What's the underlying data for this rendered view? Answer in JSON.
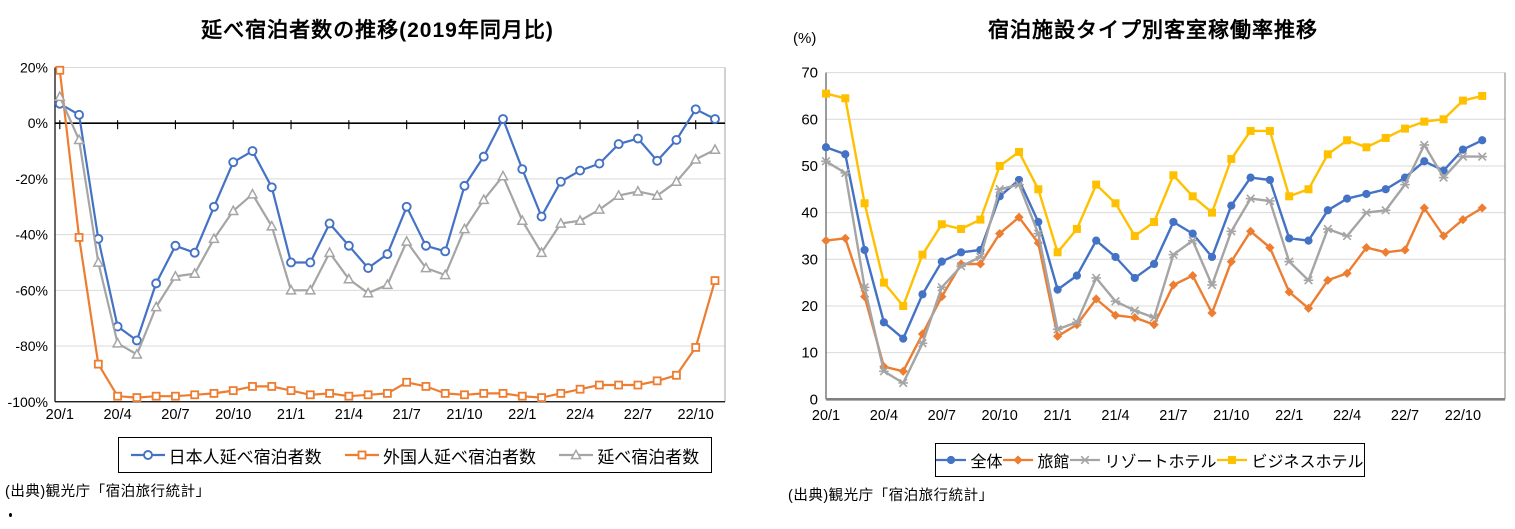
{
  "chart_data": [
    {
      "type": "line",
      "title": "延べ宿泊者数の推移(2019年同月比)",
      "source": "(出典)観光庁「宿泊旅行統計」",
      "grid": true,
      "legend_position": "bottom",
      "ylim": [
        -100,
        20
      ],
      "y_tick_values": [
        20,
        0,
        -20,
        -40,
        -60,
        -80,
        -100
      ],
      "y_tick_labels": [
        "20%",
        "0%",
        "-20%",
        "-40%",
        "-60%",
        "-80%",
        "-100%"
      ],
      "x_tick_labels": [
        "20/1",
        "20/4",
        "20/7",
        "20/10",
        "21/1",
        "21/4",
        "21/7",
        "21/10",
        "22/1",
        "22/4",
        "22/7",
        "22/10"
      ],
      "months": [
        "20/1",
        "20/2",
        "20/3",
        "20/4",
        "20/5",
        "20/6",
        "20/7",
        "20/8",
        "20/9",
        "20/10",
        "20/11",
        "20/12",
        "21/1",
        "21/2",
        "21/3",
        "21/4",
        "21/5",
        "21/6",
        "21/7",
        "21/8",
        "21/9",
        "21/10",
        "21/11",
        "21/12",
        "22/1",
        "22/2",
        "22/3",
        "22/4",
        "22/5",
        "22/6",
        "22/7",
        "22/8",
        "22/9",
        "22/10",
        "22/11"
      ],
      "series": [
        {
          "name": "日本人延べ宿泊者数",
          "color": "#4472C4",
          "marker": "circle-open",
          "values": [
            7,
            3,
            -41.5,
            -73,
            -78,
            -57.5,
            -44,
            -46.5,
            -30,
            -14,
            -10,
            -23,
            -50,
            -50,
            -36,
            -44,
            -52,
            -47,
            -30,
            -44,
            -46,
            -22.5,
            -12,
            1.5,
            -16.5,
            -33.5,
            -21,
            -17,
            -14.5,
            -7.5,
            -5.5,
            -13.5,
            -6,
            5,
            1.5
          ]
        },
        {
          "name": "外国人延べ宿泊者数",
          "color": "#ED7D31",
          "marker": "square-open",
          "values": [
            19,
            -41,
            -86.5,
            -98,
            -98.5,
            -98,
            -98,
            -97.5,
            -97,
            -96,
            -94.5,
            -94.5,
            -96,
            -97.5,
            -97,
            -98,
            -97.5,
            -97,
            -93,
            -94.5,
            -97,
            -97.5,
            -97,
            -97,
            -98,
            -98.5,
            -97,
            -95.5,
            -94,
            -94,
            -94,
            -92.5,
            -90.5,
            -80.5,
            -56.5
          ]
        },
        {
          "name": "延べ宿泊者数",
          "color": "#A5A5A5",
          "marker": "triangle-open",
          "values": [
            9.5,
            -6,
            -50,
            -79,
            -83,
            -66,
            -55,
            -54,
            -41.5,
            -31.5,
            -25.5,
            -37,
            -60,
            -60,
            -46.5,
            -56,
            -61,
            -58,
            -42.5,
            -52,
            -54.5,
            -38,
            -27.5,
            -19,
            -35,
            -46.5,
            -36,
            -35,
            -31,
            -26,
            -24.5,
            -26,
            -21,
            -13,
            -9.5
          ]
        }
      ]
    },
    {
      "type": "line",
      "title": "宿泊施設タイプ別客室稼働率推移",
      "y_axis_unit": "(%)",
      "source": "(出典)観光庁「宿泊旅行統計」",
      "grid": true,
      "legend_position": "bottom",
      "ylim": [
        0,
        70
      ],
      "y_tick_values": [
        70,
        60,
        50,
        40,
        30,
        20,
        10,
        0
      ],
      "y_tick_labels": [
        "70",
        "60",
        "50",
        "40",
        "30",
        "20",
        "10",
        "0"
      ],
      "x_tick_labels": [
        "20/1",
        "20/4",
        "20/7",
        "20/10",
        "21/1",
        "21/4",
        "21/7",
        "21/10",
        "22/1",
        "22/4",
        "22/7",
        "22/10"
      ],
      "months": [
        "20/1",
        "20/2",
        "20/3",
        "20/4",
        "20/5",
        "20/6",
        "20/7",
        "20/8",
        "20/9",
        "20/10",
        "20/11",
        "20/12",
        "21/1",
        "21/2",
        "21/3",
        "21/4",
        "21/5",
        "21/6",
        "21/7",
        "21/8",
        "21/9",
        "21/10",
        "21/11",
        "21/12",
        "22/1",
        "22/2",
        "22/3",
        "22/4",
        "22/5",
        "22/6",
        "22/7",
        "22/8",
        "22/9",
        "22/10",
        "22/11"
      ],
      "series": [
        {
          "name": "全体",
          "color": "#4472C4",
          "marker": "circle",
          "values": [
            54,
            52.5,
            32,
            16.5,
            13,
            22.5,
            29.5,
            31.5,
            32,
            43.5,
            47,
            38,
            23.5,
            26.5,
            34,
            30.5,
            26,
            29,
            38,
            35.5,
            30.5,
            41.5,
            47.5,
            47,
            34.5,
            34,
            40.5,
            43,
            44,
            45,
            47.5,
            51,
            49,
            53.5,
            55.5
          ]
        },
        {
          "name": "旅館",
          "color": "#ED7D31",
          "marker": "diamond",
          "values": [
            34,
            34.5,
            22,
            7,
            6,
            14,
            22,
            29,
            29,
            35.5,
            39,
            33.5,
            13.5,
            16,
            21.5,
            18,
            17.5,
            16,
            24.5,
            26.5,
            18.5,
            29.5,
            36,
            32.5,
            23,
            19.5,
            25.5,
            27,
            32.5,
            31.5,
            32,
            41,
            35,
            38.5,
            41
          ]
        },
        {
          "name": "リゾートホテル",
          "color": "#A5A5A5",
          "marker": "star",
          "values": [
            51,
            48.5,
            24,
            6,
            3.5,
            12,
            24,
            28.5,
            30.5,
            45,
            46,
            35.5,
            15,
            16.5,
            26,
            21,
            19,
            17.5,
            31,
            34,
            24.5,
            36,
            43,
            42.5,
            29.5,
            25.5,
            36.5,
            35,
            40,
            40.5,
            46,
            54.5,
            47.5,
            52,
            52
          ]
        },
        {
          "name": "ビジネスホテル",
          "color": "#FFC000",
          "marker": "square",
          "values": [
            65.5,
            64.5,
            42,
            25,
            20,
            31,
            37.5,
            36.5,
            38.5,
            50,
            53,
            45,
            31.5,
            36.5,
            46,
            42,
            35,
            38,
            48,
            43.5,
            40,
            51.5,
            57.5,
            57.5,
            43.5,
            45,
            52.5,
            55.5,
            54,
            56,
            58,
            59.5,
            60,
            64,
            65
          ]
        }
      ]
    }
  ]
}
